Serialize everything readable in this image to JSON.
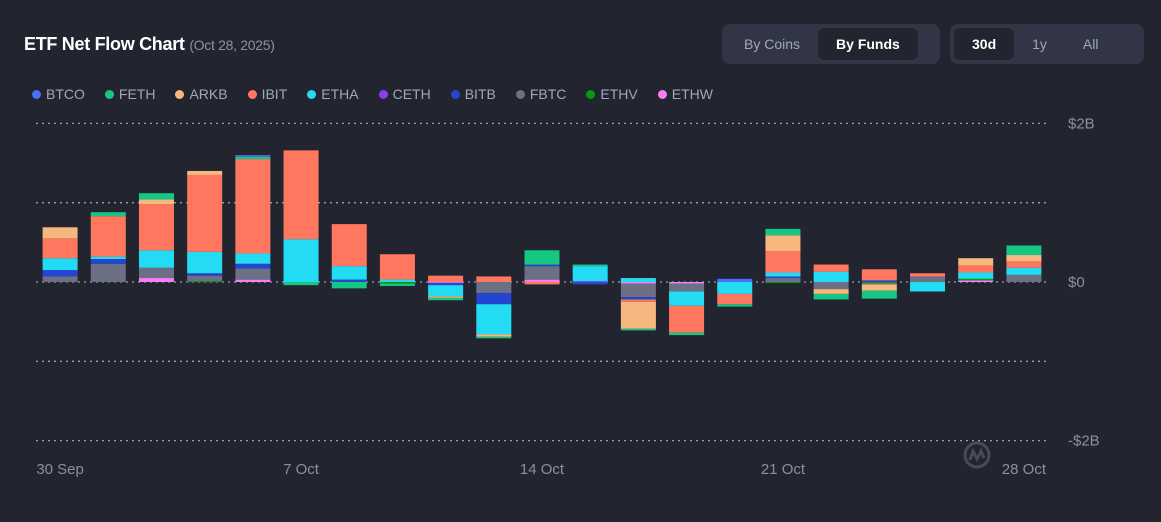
{
  "header": {
    "title": "ETF Net Flow Chart",
    "date": "(Oct 28, 2025)"
  },
  "view_toggle": [
    {
      "label": "By Coins",
      "active": false
    },
    {
      "label": "By Funds",
      "active": true
    }
  ],
  "range_toggle": [
    {
      "label": "30d",
      "active": true
    },
    {
      "label": "1y",
      "active": false
    },
    {
      "label": "All",
      "active": false
    }
  ],
  "watermark": "CoinMarketCap",
  "chart_data": {
    "type": "bar",
    "stacked": true,
    "categories": [
      "30 Sep",
      "1 Oct",
      "2 Oct",
      "3 Oct",
      "6 Oct",
      "7 Oct",
      "8 Oct",
      "9 Oct",
      "10 Oct",
      "13 Oct",
      "14 Oct",
      "15 Oct",
      "16 Oct",
      "17 Oct",
      "20 Oct",
      "21 Oct",
      "22 Oct",
      "23 Oct",
      "24 Oct",
      "27 Oct",
      "28 Oct"
    ],
    "x_tick_labels": [
      "30 Sep",
      "7 Oct",
      "14 Oct",
      "21 Oct",
      "28 Oct"
    ],
    "x_tick_indices": [
      0,
      5,
      10,
      15,
      20
    ],
    "y_unit": "USD billions",
    "y_tick_labels": [
      "$2B",
      "$0",
      "-$2B"
    ],
    "y_ticks": [
      2,
      0,
      -2
    ],
    "gridlines": [
      2,
      1,
      0,
      -1,
      -2
    ],
    "ylim": [
      -2,
      2
    ],
    "grid": true,
    "legend_position": "top-left",
    "series": [
      {
        "name": "BTCO",
        "color": "#4c6ef5",
        "values": [
          0,
          0,
          0,
          0,
          0.02,
          0,
          0,
          0,
          0,
          0,
          0,
          0,
          0,
          0,
          0.04,
          0,
          0,
          0,
          0,
          0,
          0
        ]
      },
      {
        "name": "FETH",
        "color": "#16c784",
        "values": [
          0,
          0.05,
          0.08,
          0,
          0.03,
          -0.04,
          -0.08,
          -0.03,
          -0.03,
          -0.02,
          0.18,
          0.02,
          -0.02,
          -0.03,
          -0.03,
          0.08,
          -0.07,
          -0.1,
          0,
          0,
          0.12
        ]
      },
      {
        "name": "ARKB",
        "color": "#f6b87e",
        "values": [
          0.14,
          0,
          0.06,
          0.05,
          0,
          0,
          0,
          0,
          -0.02,
          -0.03,
          0,
          0,
          -0.34,
          0,
          0,
          0.2,
          -0.06,
          -0.08,
          0,
          0.09,
          0.08
        ]
      },
      {
        "name": "IBIT",
        "color": "#ff775f",
        "values": [
          0.25,
          0.51,
          0.58,
          0.97,
          1.19,
          1.12,
          0.53,
          0.32,
          0.08,
          0.07,
          -0.03,
          0,
          -0.03,
          -0.34,
          -0.13,
          0.27,
          0.09,
          0.14,
          0.04,
          0.09,
          0.08
        ]
      },
      {
        "name": "ETHA",
        "color": "#24dbf4",
        "values": [
          0.15,
          0.03,
          0.22,
          0.27,
          0.13,
          0.54,
          0.17,
          0.03,
          -0.14,
          -0.38,
          0,
          0.19,
          0.05,
          -0.18,
          -0.15,
          0.05,
          0.13,
          0,
          -0.12,
          0.08,
          0.09
        ]
      },
      {
        "name": "CETH",
        "color": "#8c3fe8",
        "values": [
          0,
          0,
          0,
          0,
          0,
          0,
          0,
          0,
          0,
          0,
          0,
          0.01,
          0,
          0,
          0,
          0,
          0,
          0,
          0,
          0,
          0
        ]
      },
      {
        "name": "BITB",
        "color": "#2445d0",
        "values": [
          0.08,
          0.06,
          0,
          0.03,
          0.06,
          0,
          0.03,
          0,
          -0.03,
          -0.14,
          0.02,
          -0.03,
          -0.03,
          0,
          0,
          0.02,
          0,
          0.02,
          0,
          0,
          0
        ]
      },
      {
        "name": "FBTC",
        "color": "#6b7084",
        "values": [
          0.07,
          0.23,
          0.13,
          0.07,
          0.14,
          0,
          0,
          0,
          0,
          -0.14,
          0.17,
          0,
          -0.17,
          -0.1,
          0,
          0.05,
          -0.09,
          -0.02,
          0.07,
          0,
          0.09
        ]
      },
      {
        "name": "ETHV",
        "color": "#079b0f",
        "values": [
          0,
          0,
          0,
          0.01,
          0,
          0,
          0,
          -0.02,
          0,
          0,
          0,
          0,
          0,
          0,
          0,
          -0.01,
          0,
          -0.01,
          0,
          0.02,
          0
        ]
      },
      {
        "name": "ETHW",
        "color": "#f97df5",
        "values": [
          0,
          0,
          0.05,
          0,
          0.03,
          0,
          0,
          0,
          -0.01,
          0,
          0.03,
          0,
          -0.02,
          -0.02,
          0,
          0,
          0,
          0,
          0,
          0.02,
          0
        ]
      }
    ]
  }
}
